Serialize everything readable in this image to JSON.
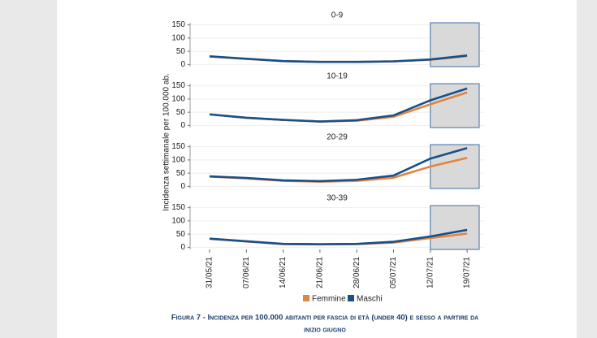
{
  "y_label": "Incidenza settimanale per 100.000 ab.",
  "caption": [
    "Figura 7 - Incidenza per 100.000 abitanti per fascia di età (under 40) e sesso a partire da",
    "inizio giugno"
  ],
  "chart_data": [
    {
      "type": "line",
      "title": "0-9",
      "ylim": [
        -8,
        158
      ],
      "yticks": [
        0,
        50,
        100,
        150
      ],
      "grid": true,
      "series": [
        {
          "name": "Femmine",
          "color": "#e3843f",
          "values": [
            30,
            21,
            13,
            10,
            10,
            12,
            18,
            32
          ]
        },
        {
          "name": "Maschi",
          "color": "#17508a",
          "values": [
            31,
            22,
            13,
            10,
            10,
            12,
            19,
            34
          ]
        }
      ]
    },
    {
      "type": "line",
      "title": "10-19",
      "ylim": [
        -8,
        158
      ],
      "yticks": [
        0,
        50,
        100,
        150
      ],
      "grid": true,
      "series": [
        {
          "name": "Femmine",
          "color": "#e3843f",
          "values": [
            42,
            29,
            21,
            15,
            18,
            33,
            80,
            125
          ]
        },
        {
          "name": "Maschi",
          "color": "#17508a",
          "values": [
            42,
            29,
            21,
            15,
            20,
            38,
            95,
            140
          ]
        }
      ]
    },
    {
      "type": "line",
      "title": "20-29",
      "ylim": [
        -8,
        158
      ],
      "yticks": [
        0,
        50,
        100,
        150
      ],
      "grid": true,
      "series": [
        {
          "name": "Femmine",
          "color": "#e3843f",
          "values": [
            37,
            30,
            21,
            18,
            21,
            33,
            75,
            108
          ]
        },
        {
          "name": "Maschi",
          "color": "#17508a",
          "values": [
            38,
            32,
            23,
            20,
            25,
            41,
            105,
            145
          ]
        }
      ]
    },
    {
      "type": "line",
      "title": "30-39",
      "ylim": [
        -8,
        158
      ],
      "yticks": [
        0,
        50,
        100,
        150
      ],
      "grid": true,
      "categories": [
        "31/05/21",
        "07/06/21",
        "14/06/21",
        "21/06/21",
        "28/06/21",
        "05/07/21",
        "12/07/21",
        "19/07/21"
      ],
      "series": [
        {
          "name": "Femmine",
          "color": "#e3843f",
          "values": [
            32,
            22,
            12,
            11,
            12,
            18,
            35,
            52
          ]
        },
        {
          "name": "Maschi",
          "color": "#17508a",
          "values": [
            33,
            23,
            13,
            12,
            13,
            21,
            41,
            66
          ]
        }
      ]
    }
  ]
}
